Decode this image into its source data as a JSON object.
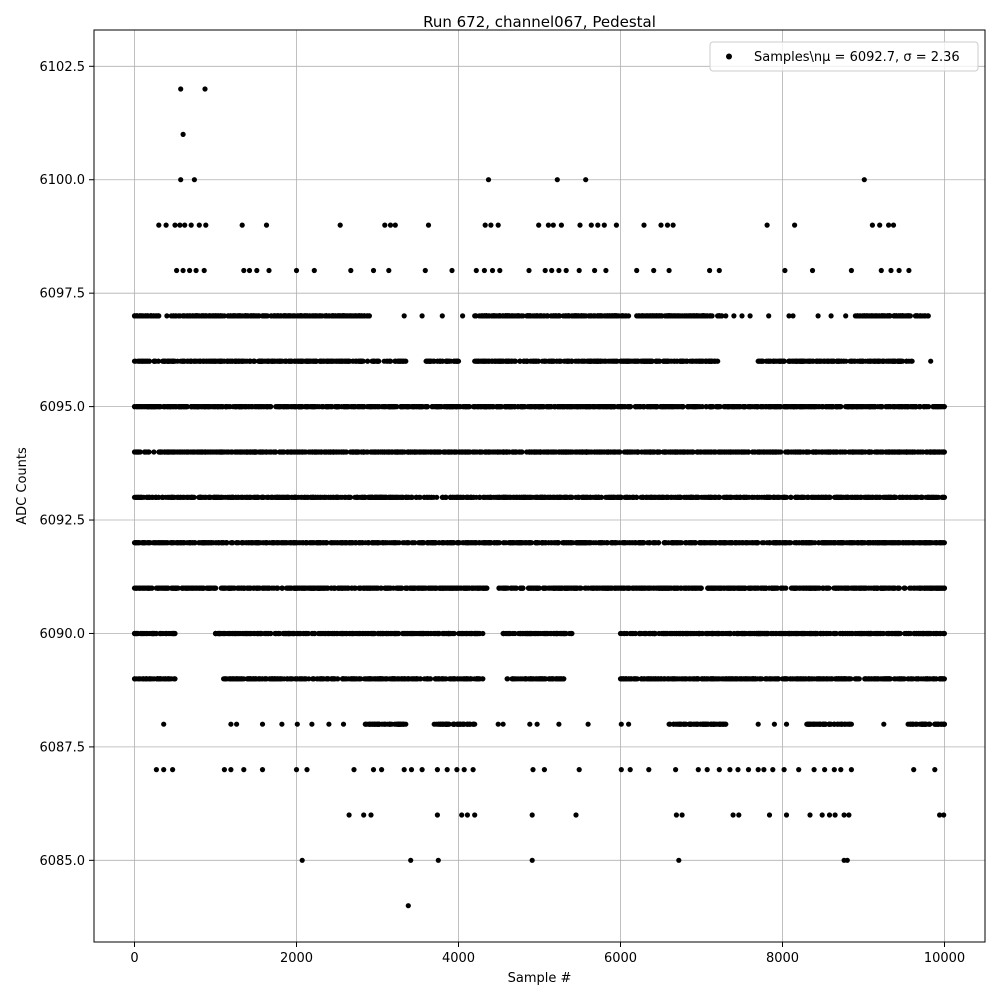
{
  "chart_data": {
    "type": "scatter",
    "title": "Run 672, channel067, Pedestal",
    "xlabel": "Sample #",
    "ylabel": "ADC Counts",
    "xlim": [
      -500,
      10500
    ],
    "ylim": [
      6083.2,
      6103.3
    ],
    "xticks": [
      0,
      2000,
      4000,
      6000,
      8000,
      10000
    ],
    "xtick_labels": [
      "0",
      "2000",
      "4000",
      "6000",
      "8000",
      "10000"
    ],
    "yticks": [
      6085.0,
      6087.5,
      6090.0,
      6092.5,
      6095.0,
      6097.5,
      6100.0,
      6102.5
    ],
    "ytick_labels": [
      "6085.0",
      "6087.5",
      "6090.0",
      "6092.5",
      "6095.0",
      "6097.5",
      "6100.0",
      "6102.5"
    ],
    "grid": true,
    "legend": {
      "position": "top-right",
      "entries": [
        {
          "label": "Samples\\nμ = 6092.7, σ = 2.36",
          "marker": "circle",
          "color": "#000000"
        }
      ]
    },
    "series": [
      {
        "name": "Samples\\nμ = 6092.7, σ = 2.36",
        "color": "#000000",
        "x_range": [
          0,
          9999
        ],
        "levels": [
          {
            "y": 6092,
            "x_segments": [
              [
                0,
                9999
              ]
            ]
          },
          {
            "y": 6093,
            "x_segments": [
              [
                0,
                9999
              ]
            ]
          },
          {
            "y": 6094,
            "x_segments": [
              [
                0,
                9999
              ]
            ]
          },
          {
            "y": 6095,
            "x_segments": [
              [
                0,
                9999
              ]
            ]
          },
          {
            "y": 6091,
            "x_segments": [
              [
                0,
                4350
              ],
              [
                4500,
                9999
              ]
            ]
          },
          {
            "y": 6090,
            "x_segments": [
              [
                0,
                500
              ],
              [
                1000,
                4300
              ],
              [
                4550,
                5400
              ],
              [
                6000,
                9999
              ]
            ]
          },
          {
            "y": 6096,
            "x_segments": [
              [
                0,
                3350
              ],
              [
                3600,
                4000
              ],
              [
                4200,
                7200
              ],
              [
                7700,
                9600
              ]
            ]
          },
          {
            "y": 6097,
            "x_segments": [
              [
                0,
                300
              ],
              [
                400,
                2900
              ],
              [
                4200,
                6100
              ],
              [
                6200,
                7300
              ],
              [
                8900,
                9800
              ]
            ]
          },
          {
            "y": 6089,
            "x_segments": [
              [
                0,
                500
              ],
              [
                1100,
                4300
              ],
              [
                4600,
                5300
              ],
              [
                6000,
                9999
              ]
            ]
          },
          {
            "y": 6088,
            "x_segments": [
              [
                2850,
                3350
              ],
              [
                3700,
                4200
              ],
              [
                6600,
                7300
              ],
              [
                8300,
                8850
              ],
              [
                9550,
                9999
              ]
            ]
          }
        ],
        "points": [
          [
            570,
            6102
          ],
          [
            870,
            6102
          ],
          [
            600,
            6101
          ],
          [
            570,
            6100
          ],
          [
            740,
            6100
          ],
          [
            4370,
            6100
          ],
          [
            5220,
            6100
          ],
          [
            5570,
            6100
          ],
          [
            9010,
            6100
          ],
          [
            300,
            6099
          ],
          [
            390,
            6099
          ],
          [
            500,
            6099
          ],
          [
            560,
            6099
          ],
          [
            620,
            6099
          ],
          [
            700,
            6099
          ],
          [
            800,
            6099
          ],
          [
            880,
            6099
          ],
          [
            1330,
            6099
          ],
          [
            1630,
            6099
          ],
          [
            2540,
            6099
          ],
          [
            3090,
            6099
          ],
          [
            3160,
            6099
          ],
          [
            3220,
            6099
          ],
          [
            3630,
            6099
          ],
          [
            4330,
            6099
          ],
          [
            4400,
            6099
          ],
          [
            4490,
            6099
          ],
          [
            4990,
            6099
          ],
          [
            5110,
            6099
          ],
          [
            5170,
            6099
          ],
          [
            5270,
            6099
          ],
          [
            5500,
            6099
          ],
          [
            5640,
            6099
          ],
          [
            5720,
            6099
          ],
          [
            5800,
            6099
          ],
          [
            5950,
            6099
          ],
          [
            6290,
            6099
          ],
          [
            6500,
            6099
          ],
          [
            6580,
            6099
          ],
          [
            6650,
            6099
          ],
          [
            7810,
            6099
          ],
          [
            8150,
            6099
          ],
          [
            9110,
            6099
          ],
          [
            9200,
            6099
          ],
          [
            9310,
            6099
          ],
          [
            9370,
            6099
          ],
          [
            520,
            6098
          ],
          [
            600,
            6098
          ],
          [
            680,
            6098
          ],
          [
            760,
            6098
          ],
          [
            860,
            6098
          ],
          [
            1350,
            6098
          ],
          [
            1420,
            6098
          ],
          [
            1510,
            6098
          ],
          [
            1660,
            6098
          ],
          [
            2000,
            6098
          ],
          [
            2220,
            6098
          ],
          [
            2670,
            6098
          ],
          [
            2950,
            6098
          ],
          [
            3140,
            6098
          ],
          [
            3590,
            6098
          ],
          [
            3920,
            6098
          ],
          [
            4220,
            6098
          ],
          [
            4320,
            6098
          ],
          [
            4420,
            6098
          ],
          [
            4510,
            6098
          ],
          [
            4870,
            6098
          ],
          [
            5070,
            6098
          ],
          [
            5150,
            6098
          ],
          [
            5240,
            6098
          ],
          [
            5330,
            6098
          ],
          [
            5490,
            6098
          ],
          [
            5680,
            6098
          ],
          [
            5820,
            6098
          ],
          [
            6200,
            6098
          ],
          [
            6410,
            6098
          ],
          [
            6600,
            6098
          ],
          [
            7100,
            6098
          ],
          [
            7220,
            6098
          ],
          [
            8030,
            6098
          ],
          [
            8370,
            6098
          ],
          [
            8850,
            6098
          ],
          [
            9220,
            6098
          ],
          [
            9340,
            6098
          ],
          [
            9440,
            6098
          ],
          [
            9560,
            6098
          ],
          [
            100,
            6097
          ],
          [
            200,
            6097
          ],
          [
            3330,
            6097
          ],
          [
            3550,
            6097
          ],
          [
            3800,
            6097
          ],
          [
            4050,
            6097
          ],
          [
            7400,
            6097
          ],
          [
            7500,
            6097
          ],
          [
            7600,
            6097
          ],
          [
            7830,
            6097
          ],
          [
            8080,
            6097
          ],
          [
            8130,
            6097
          ],
          [
            8440,
            6097
          ],
          [
            8600,
            6097
          ],
          [
            8780,
            6097
          ],
          [
            8170,
            6096
          ],
          [
            8380,
            6096
          ],
          [
            8610,
            6096
          ],
          [
            9830,
            6096
          ],
          [
            360,
            6088
          ],
          [
            1190,
            6088
          ],
          [
            1260,
            6088
          ],
          [
            1580,
            6088
          ],
          [
            1820,
            6088
          ],
          [
            2010,
            6088
          ],
          [
            2190,
            6088
          ],
          [
            2400,
            6088
          ],
          [
            2580,
            6088
          ],
          [
            4490,
            6088
          ],
          [
            4550,
            6088
          ],
          [
            4880,
            6088
          ],
          [
            4970,
            6088
          ],
          [
            5240,
            6088
          ],
          [
            5600,
            6088
          ],
          [
            6010,
            6088
          ],
          [
            6100,
            6088
          ],
          [
            7700,
            6088
          ],
          [
            7900,
            6088
          ],
          [
            8050,
            6088
          ],
          [
            9250,
            6088
          ],
          [
            270,
            6087
          ],
          [
            360,
            6087
          ],
          [
            470,
            6087
          ],
          [
            1110,
            6087
          ],
          [
            1190,
            6087
          ],
          [
            1350,
            6087
          ],
          [
            1580,
            6087
          ],
          [
            2000,
            6087
          ],
          [
            2130,
            6087
          ],
          [
            2710,
            6087
          ],
          [
            2950,
            6087
          ],
          [
            3050,
            6087
          ],
          [
            3330,
            6087
          ],
          [
            3420,
            6087
          ],
          [
            3550,
            6087
          ],
          [
            3740,
            6087
          ],
          [
            3860,
            6087
          ],
          [
            3980,
            6087
          ],
          [
            4070,
            6087
          ],
          [
            4180,
            6087
          ],
          [
            4920,
            6087
          ],
          [
            5060,
            6087
          ],
          [
            5490,
            6087
          ],
          [
            6010,
            6087
          ],
          [
            6120,
            6087
          ],
          [
            6350,
            6087
          ],
          [
            6680,
            6087
          ],
          [
            6960,
            6087
          ],
          [
            7070,
            6087
          ],
          [
            7220,
            6087
          ],
          [
            7350,
            6087
          ],
          [
            7450,
            6087
          ],
          [
            7580,
            6087
          ],
          [
            7700,
            6087
          ],
          [
            7770,
            6087
          ],
          [
            7880,
            6087
          ],
          [
            8020,
            6087
          ],
          [
            8200,
            6087
          ],
          [
            8390,
            6087
          ],
          [
            8520,
            6087
          ],
          [
            8640,
            6087
          ],
          [
            8720,
            6087
          ],
          [
            8850,
            6087
          ],
          [
            9620,
            6087
          ],
          [
            9880,
            6087
          ],
          [
            2650,
            6086
          ],
          [
            2830,
            6086
          ],
          [
            2920,
            6086
          ],
          [
            3740,
            6086
          ],
          [
            4040,
            6086
          ],
          [
            4110,
            6086
          ],
          [
            4200,
            6086
          ],
          [
            4910,
            6086
          ],
          [
            5450,
            6086
          ],
          [
            6690,
            6086
          ],
          [
            6760,
            6086
          ],
          [
            7390,
            6086
          ],
          [
            7460,
            6086
          ],
          [
            7840,
            6086
          ],
          [
            8050,
            6086
          ],
          [
            8340,
            6086
          ],
          [
            8490,
            6086
          ],
          [
            8580,
            6086
          ],
          [
            8650,
            6086
          ],
          [
            8760,
            6086
          ],
          [
            8820,
            6086
          ],
          [
            9940,
            6086
          ],
          [
            9990,
            6086
          ],
          [
            2070,
            6085
          ],
          [
            3410,
            6085
          ],
          [
            3750,
            6085
          ],
          [
            4910,
            6085
          ],
          [
            6720,
            6085
          ],
          [
            8760,
            6085
          ],
          [
            8800,
            6085
          ],
          [
            3380,
            6084
          ]
        ]
      }
    ]
  }
}
